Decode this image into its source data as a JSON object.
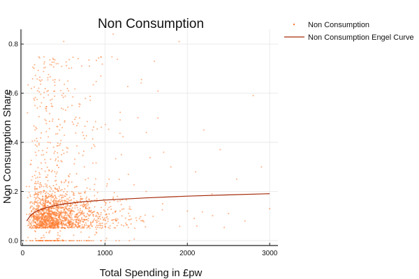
{
  "chart_data": {
    "type": "scatter",
    "title": "Non Consumption",
    "xlabel": "Total Spending in £pw",
    "ylabel": "Non Consumption Share",
    "xlim": [
      -20,
      3100
    ],
    "ylim": [
      -0.02,
      0.86
    ],
    "xticks": [
      0,
      1000,
      2000,
      3000
    ],
    "xtick_labels": [
      "0",
      "1000",
      "2000",
      "3000"
    ],
    "yticks": [
      0.0,
      0.2,
      0.4,
      0.6,
      0.8
    ],
    "ytick_labels": [
      "0.0",
      "0.2",
      "0.4",
      "0.6",
      "0.8"
    ],
    "grid": true,
    "legend_position": "outside-top-right",
    "colors": {
      "scatter": "#ff7a2e",
      "curve": "#a52a0a",
      "axis": "#222222",
      "grid": "#e6e6e6"
    },
    "series": [
      {
        "name": "Non Consumption",
        "kind": "scatter",
        "approx_point_count": 1900,
        "points": [
          [
            45,
            0.0
          ],
          [
            120,
            0.0
          ],
          [
            200,
            0.0
          ],
          [
            300,
            0.0
          ],
          [
            380,
            0.0
          ],
          [
            60,
            0.52
          ],
          [
            80,
            0.22
          ],
          [
            95,
            0.31
          ],
          [
            110,
            0.12
          ],
          [
            130,
            0.08
          ],
          [
            150,
            0.45
          ],
          [
            165,
            0.05
          ],
          [
            180,
            0.19
          ],
          [
            195,
            0.62
          ],
          [
            210,
            0.27
          ],
          [
            230,
            0.09
          ],
          [
            250,
            0.14
          ],
          [
            270,
            0.33
          ],
          [
            290,
            0.07
          ],
          [
            310,
            0.4
          ],
          [
            330,
            0.11
          ],
          [
            350,
            0.21
          ],
          [
            370,
            0.06
          ],
          [
            390,
            0.28
          ],
          [
            410,
            0.15
          ],
          [
            430,
            0.72
          ],
          [
            450,
            0.1
          ],
          [
            470,
            0.24
          ],
          [
            490,
            0.08
          ],
          [
            500,
            0.81
          ],
          [
            520,
            0.18
          ],
          [
            540,
            0.36
          ],
          [
            560,
            0.07
          ],
          [
            580,
            0.12
          ],
          [
            600,
            0.55
          ],
          [
            650,
            0.22
          ],
          [
            700,
            0.13
          ],
          [
            750,
            0.3
          ],
          [
            800,
            0.09
          ],
          [
            850,
            0.45
          ],
          [
            900,
            0.16
          ],
          [
            950,
            0.67
          ],
          [
            1000,
            0.12
          ],
          [
            1050,
            0.25
          ],
          [
            1100,
            0.84
          ],
          [
            1150,
            0.18
          ],
          [
            1200,
            0.35
          ],
          [
            1300,
            0.1
          ],
          [
            1400,
            0.5
          ],
          [
            1500,
            0.2
          ],
          [
            1600,
            0.73
          ],
          [
            1700,
            0.15
          ],
          [
            1800,
            0.3
          ],
          [
            1900,
            0.81
          ],
          [
            2000,
            0.12
          ],
          [
            2100,
            0.28
          ],
          [
            2200,
            0.45
          ],
          [
            2300,
            0.19
          ],
          [
            2400,
            0.37
          ],
          [
            2500,
            0.11
          ],
          [
            2600,
            0.25
          ],
          [
            2700,
            0.08
          ],
          [
            2800,
            0.59
          ],
          [
            2900,
            0.3
          ],
          [
            3000,
            0.13
          ]
        ]
      },
      {
        "name": "Non Consumption Engel Curve",
        "kind": "line",
        "x": [
          50,
          100,
          150,
          200,
          300,
          400,
          500,
          700,
          1000,
          1500,
          2000,
          2500,
          3000
        ],
        "y": [
          0.08,
          0.105,
          0.116,
          0.124,
          0.135,
          0.143,
          0.149,
          0.157,
          0.165,
          0.174,
          0.181,
          0.186,
          0.191
        ]
      }
    ]
  }
}
